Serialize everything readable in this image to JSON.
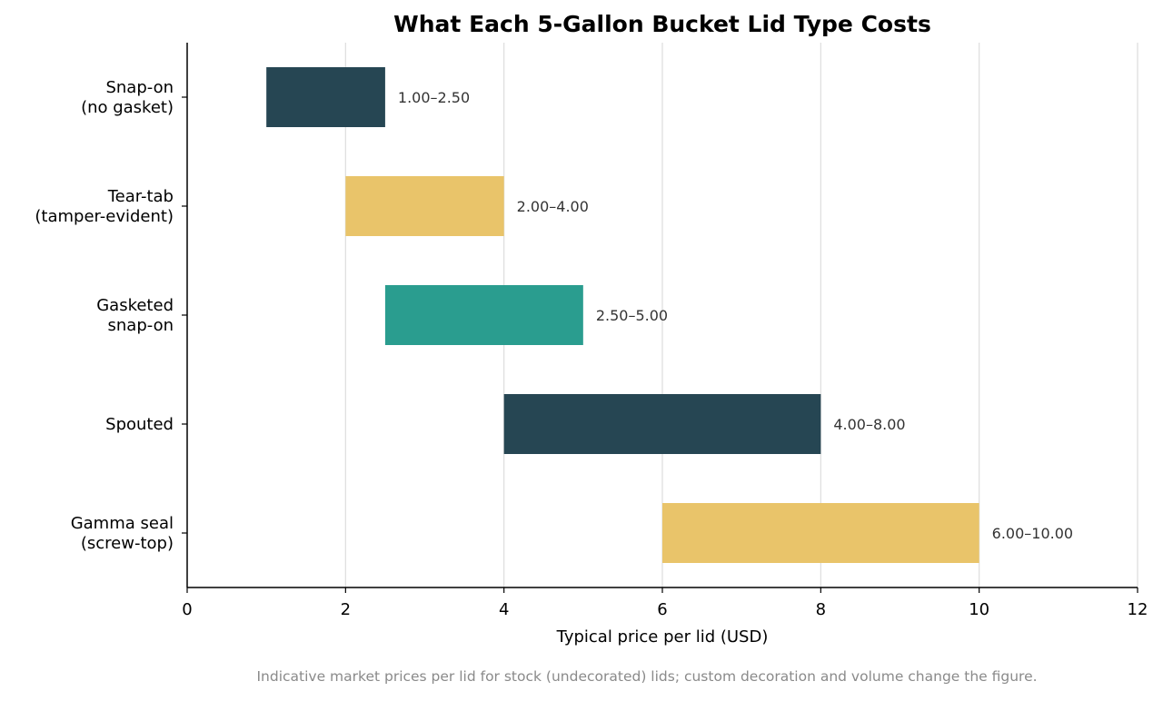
{
  "chart_data": {
    "type": "bar",
    "orientation": "horizontal",
    "subtype": "floating-range",
    "title": "What Each 5-Gallon Bucket Lid Type Costs",
    "xlabel": "Typical price per lid (USD)",
    "ylabel": "",
    "xlim": [
      0,
      12
    ],
    "xticks": [
      0,
      2,
      4,
      6,
      8,
      10,
      12
    ],
    "grid": "vertical",
    "legend": "none",
    "footnote": "Indicative market prices per lid for stock (undecorated) lids; custom decoration and volume change the figure.",
    "categories": [
      [
        "Snap-on",
        "(no gasket)"
      ],
      [
        "Tear-tab",
        "(tamper-evident)"
      ],
      [
        "Gasketed",
        "snap-on"
      ],
      [
        "Spouted"
      ],
      [
        "Gamma seal",
        "(screw-top)"
      ]
    ],
    "ranges": [
      {
        "low": 1.0,
        "high": 2.5,
        "label": "1.00–2.50",
        "color": "#264653"
      },
      {
        "low": 2.0,
        "high": 4.0,
        "label": "2.00–4.00",
        "color": "#E9C46A"
      },
      {
        "low": 2.5,
        "high": 5.0,
        "label": "2.50–5.00",
        "color": "#2A9D8F"
      },
      {
        "low": 4.0,
        "high": 8.0,
        "label": "4.00–8.00",
        "color": "#264653"
      },
      {
        "low": 6.0,
        "high": 10.0,
        "label": "6.00–10.00",
        "color": "#E9C46A"
      }
    ]
  }
}
